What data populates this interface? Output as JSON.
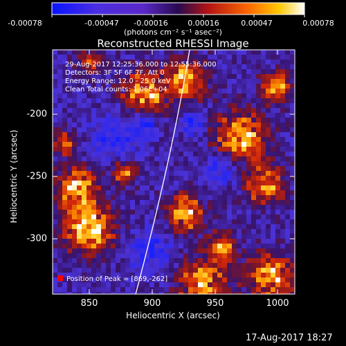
{
  "colorbar": {
    "tick_labels": [
      "-0.00078",
      "-0.00047",
      "-0.00016",
      "0.00016",
      "0.00047",
      "0.00078"
    ],
    "units": "(photons cm⁻² s⁻¹ asec⁻²)",
    "colors": {
      "min": "#0a14ff",
      "low": "#5a28c8",
      "mid": "#280a50",
      "midhigh": "#b41414",
      "high": "#ff9b00",
      "max": "#ffffff"
    }
  },
  "plot": {
    "title": "Reconstructed RHESSI Image",
    "x_axis_title": "Heliocentric X (arcsec)",
    "y_axis_title": "Heliocentric Y (arcsec)",
    "x_tick_labels": [
      "850",
      "900",
      "950",
      "1000"
    ],
    "y_tick_labels": [
      "-200",
      "-250",
      "-300"
    ],
    "info": {
      "time_range": "29-Aug-2017 12:25:36.000 to 12:55:36.000",
      "detectors": "Detectors: 3F 5F 6F 7F, Att 0",
      "energy_range": "Energy Range: 12.0 - 25.0 keV",
      "clean": "Clean     Total counts: 1.06E+04"
    },
    "peak_label": "Position of Peak = [869,-262]",
    "limb_color": "#ffffff",
    "peak_marker_color": "#ff0000"
  },
  "footer": {
    "date": "17-Aug-2017 18:27"
  }
}
